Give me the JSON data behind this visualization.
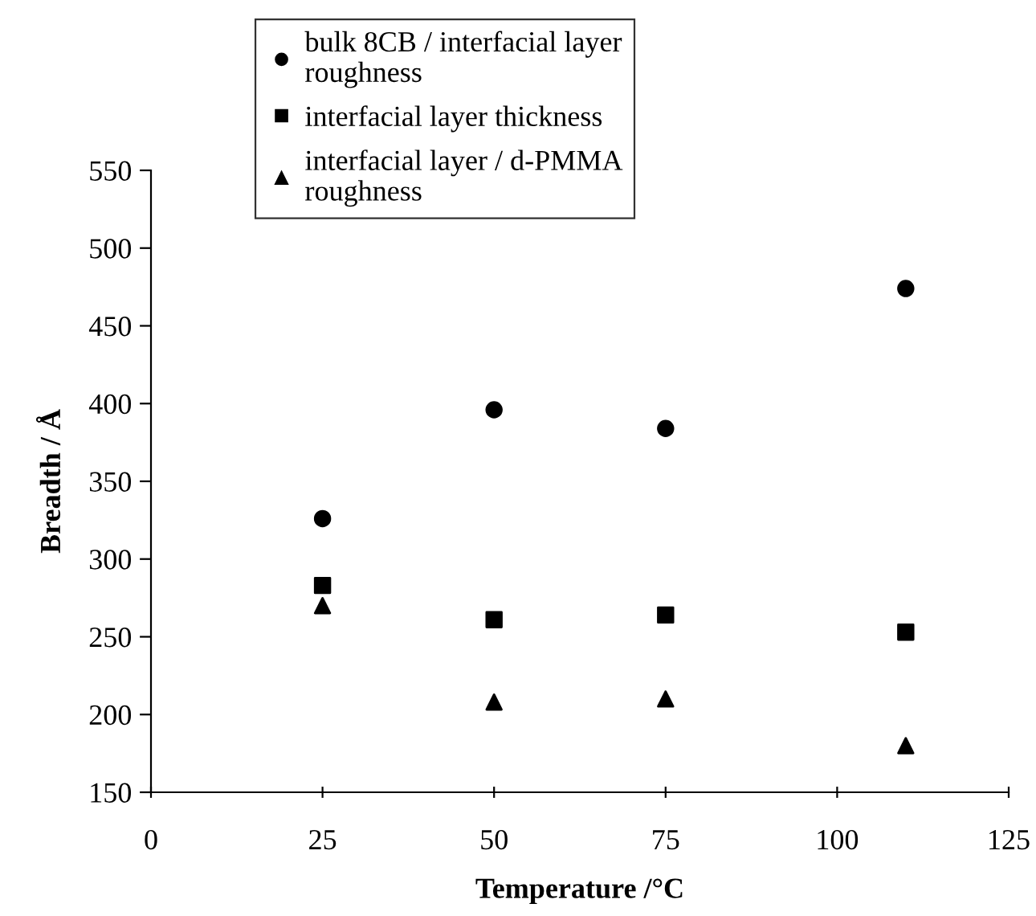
{
  "chart_data": {
    "type": "scatter",
    "xlabel": "Temperature /°C",
    "ylabel": "Breadth / Å",
    "x": [
      25,
      50,
      75,
      110
    ],
    "series": [
      {
        "name": "bulk 8CB / interfacial layer\nroughness",
        "color": "#000000",
        "marker": "circle",
        "values": [
          326,
          396,
          384,
          474
        ]
      },
      {
        "name": "interfacial layer thickness",
        "color": "#000000",
        "marker": "square",
        "values": [
          283,
          261,
          264,
          253
        ]
      },
      {
        "name": "interfacial layer / d-PMMA\nroughness",
        "color": "#000000",
        "marker": "triangle",
        "values": [
          270,
          208,
          210,
          180
        ]
      }
    ],
    "xlim": [
      0,
      125
    ],
    "xticks": [
      0,
      25,
      50,
      75,
      100,
      125
    ],
    "ylim": [
      150,
      550
    ],
    "yticks": [
      150,
      200,
      250,
      300,
      350,
      400,
      450,
      500,
      550
    ],
    "grid": false,
    "legend": "top left"
  }
}
